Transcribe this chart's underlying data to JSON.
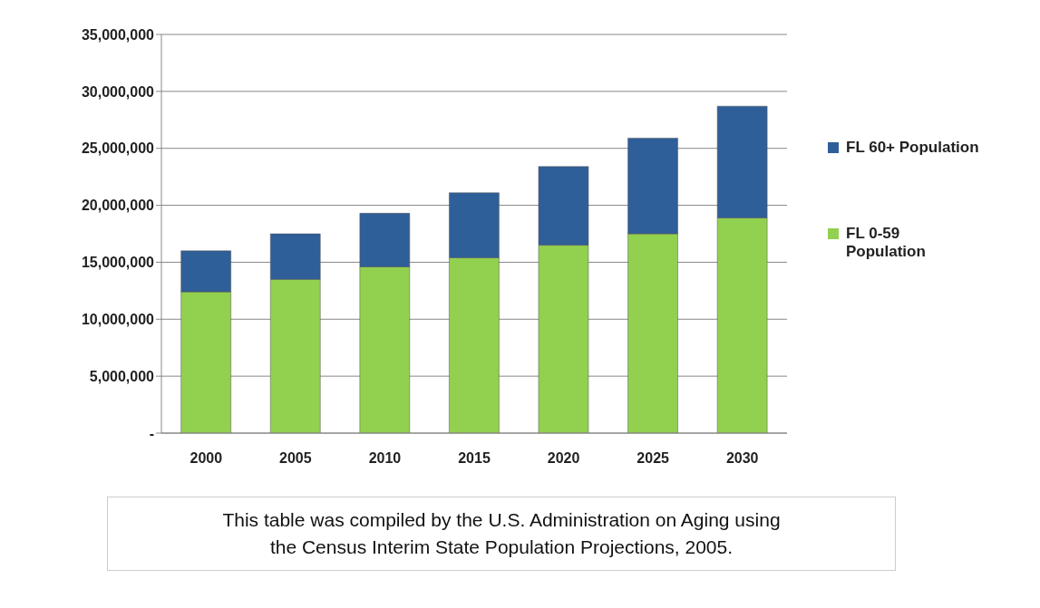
{
  "chart_data": {
    "type": "bar",
    "stacked": true,
    "categories": [
      "2000",
      "2005",
      "2010",
      "2015",
      "2020",
      "2025",
      "2030"
    ],
    "series": [
      {
        "name": "FL 0-59 Population",
        "color": "#92d050",
        "values": [
          12400000,
          13500000,
          14600000,
          15400000,
          16500000,
          17500000,
          18900000
        ]
      },
      {
        "name": "FL 60+ Population",
        "color": "#2f5f98",
        "values": [
          3600000,
          4000000,
          4700000,
          5700000,
          6900000,
          8400000,
          9800000
        ]
      }
    ],
    "ylim": [
      0,
      35000000
    ],
    "yticks": [
      {
        "value": 0,
        "label": "-"
      },
      {
        "value": 5000000,
        "label": "5,000,000"
      },
      {
        "value": 10000000,
        "label": "10,000,000"
      },
      {
        "value": 15000000,
        "label": "15,000,000"
      },
      {
        "value": 20000000,
        "label": "20,000,000"
      },
      {
        "value": 25000000,
        "label": "25,000,000"
      },
      {
        "value": 30000000,
        "label": "30,000,000"
      },
      {
        "value": 35000000,
        "label": "35,000,000"
      }
    ],
    "grid": "y",
    "legend": "right",
    "annotations": [
      "This table was compiled by the U.S. Administration on Aging using the Census Interim State Population Projections, 2005."
    ]
  }
}
